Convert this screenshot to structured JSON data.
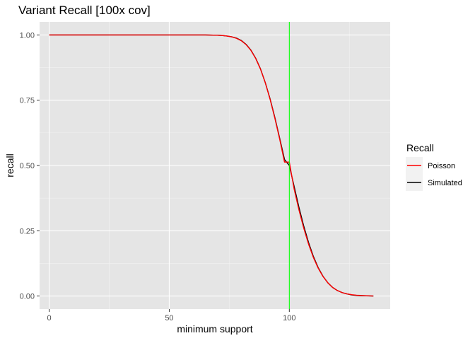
{
  "chart_data": {
    "type": "line",
    "title": "Variant Recall [100x cov]",
    "xlabel": "minimum support",
    "ylabel": "recall",
    "xlim": [
      -4,
      142
    ],
    "ylim": [
      -0.05,
      1.05
    ],
    "x_ticks": [
      0,
      50,
      100
    ],
    "x_tick_labels": [
      "0",
      "50",
      "100"
    ],
    "y_ticks": [
      0,
      0.25,
      0.5,
      0.75,
      1.0
    ],
    "y_tick_labels": [
      "0.00",
      "0.25",
      "0.50",
      "0.75",
      "1.00"
    ],
    "grid": true,
    "background": "#e5e5e5",
    "legend": {
      "title": "Recall",
      "position": "right",
      "entries": [
        {
          "label": "Poisson",
          "color": "#ff0000"
        },
        {
          "label": "Simulated",
          "color": "#000000"
        }
      ]
    },
    "vline": {
      "x": 100,
      "color": "#00ff00"
    },
    "series": [
      {
        "name": "Simulated",
        "color": "#000000",
        "x": [
          0,
          10,
          20,
          30,
          40,
          50,
          60,
          65,
          70,
          72,
          74,
          76,
          78,
          80,
          82,
          84,
          86,
          88,
          90,
          92,
          94,
          96,
          98,
          100,
          102,
          104,
          106,
          108,
          110,
          112,
          114,
          116,
          118,
          120,
          122,
          124,
          126,
          128,
          130,
          132,
          135
        ],
        "values": [
          1.0,
          1.0,
          1.0,
          1.0,
          1.0,
          1.0,
          1.0,
          1.0,
          0.999,
          0.998,
          0.996,
          0.993,
          0.988,
          0.979,
          0.964,
          0.942,
          0.911,
          0.87,
          0.817,
          0.755,
          0.683,
          0.604,
          0.523,
          0.5,
          0.42,
          0.34,
          0.268,
          0.205,
          0.152,
          0.109,
          0.076,
          0.051,
          0.033,
          0.021,
          0.013,
          0.008,
          0.004,
          0.002,
          0.001,
          0.0005,
          0.0
        ]
      },
      {
        "name": "Poisson",
        "color": "#ff0000",
        "x": [
          0,
          10,
          20,
          30,
          40,
          50,
          60,
          65,
          70,
          72,
          74,
          76,
          78,
          80,
          82,
          84,
          86,
          88,
          90,
          92,
          94,
          96,
          98,
          100,
          102,
          104,
          106,
          108,
          110,
          112,
          114,
          116,
          118,
          120,
          122,
          124,
          126,
          128,
          130,
          132,
          135
        ],
        "values": [
          1.0,
          1.0,
          1.0,
          1.0,
          1.0,
          1.0,
          1.0,
          1.0,
          0.999,
          0.998,
          0.996,
          0.993,
          0.987,
          0.978,
          0.963,
          0.941,
          0.91,
          0.869,
          0.817,
          0.753,
          0.68,
          0.6,
          0.513,
          0.513,
          0.41,
          0.33,
          0.26,
          0.199,
          0.148,
          0.107,
          0.075,
          0.051,
          0.033,
          0.021,
          0.013,
          0.008,
          0.005,
          0.003,
          0.002,
          0.001,
          0.0
        ]
      }
    ]
  }
}
